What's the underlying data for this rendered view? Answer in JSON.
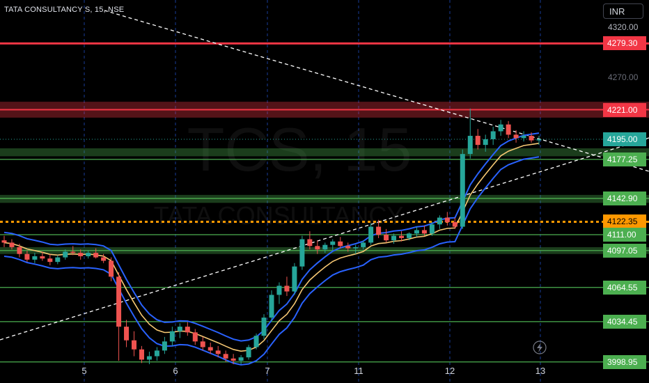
{
  "header": {
    "symbol_line": "TATA CONSULTANCY S, 15, NSE"
  },
  "currency_button": "INR",
  "watermark": {
    "ticker": "TCS, 15",
    "name": "TATA CONSULTANCY"
  },
  "axis": {
    "ticks": [
      "4320.00",
      "4270.00"
    ],
    "x_labels": [
      "5",
      "6",
      "7",
      "11",
      "12",
      "13"
    ]
  },
  "colors": {
    "background": "#000000",
    "resistance": "#f23645",
    "support": "#4caf50",
    "current": "#26a69a",
    "orange": "#ff9800",
    "band": "#2962ff",
    "ema": "#f7c873",
    "trendline": "#ffffff"
  },
  "price_labels": [
    {
      "text": "4279.30",
      "kind": "resistance"
    },
    {
      "text": "4221.00",
      "kind": "resistance"
    },
    {
      "text": "4195.00",
      "kind": "current"
    },
    {
      "text": "4177.25",
      "kind": "support"
    },
    {
      "text": "4142.90",
      "kind": "support"
    },
    {
      "text": "4122.35",
      "kind": "orange"
    },
    {
      "text": "4111.00",
      "kind": "support"
    },
    {
      "text": "4097.05",
      "kind": "support"
    },
    {
      "text": "4064.55",
      "kind": "support"
    },
    {
      "text": "4034.45",
      "kind": "support"
    },
    {
      "text": "3998.95",
      "kind": "support"
    }
  ],
  "chart_data": {
    "type": "candlestick",
    "symbol": "TATA CONSULTANCY S",
    "interval": "15",
    "exchange": "NSE",
    "ylim": [
      3997,
      4325
    ],
    "x_day_labels": [
      "5",
      "6",
      "7",
      "11",
      "12",
      "13"
    ],
    "horizontal_levels": [
      {
        "price": 4279.3,
        "kind": "resistance"
      },
      {
        "price": 4221.0,
        "kind": "resistance"
      },
      {
        "price": 4195.0,
        "kind": "current"
      },
      {
        "price": 4177.25,
        "kind": "support"
      },
      {
        "price": 4142.9,
        "kind": "support"
      },
      {
        "price": 4122.35,
        "kind": "orange"
      },
      {
        "price": 4111.0,
        "kind": "support"
      },
      {
        "price": 4097.05,
        "kind": "support"
      },
      {
        "price": 4064.55,
        "kind": "support"
      },
      {
        "price": 4034.45,
        "kind": "support"
      },
      {
        "price": 3998.95,
        "kind": "support"
      }
    ],
    "zones": [
      {
        "from": 4214,
        "to": 4228,
        "kind": "resistance"
      },
      {
        "from": 4180,
        "to": 4187,
        "kind": "support"
      },
      {
        "from": 4139,
        "to": 4146,
        "kind": "support"
      },
      {
        "from": 4094,
        "to": 4100,
        "kind": "support"
      }
    ],
    "candles": [
      {
        "o": 4106,
        "h": 4110,
        "l": 4100,
        "c": 4104
      },
      {
        "o": 4104,
        "h": 4107,
        "l": 4098,
        "c": 4100
      },
      {
        "o": 4100,
        "h": 4103,
        "l": 4091,
        "c": 4094
      },
      {
        "o": 4094,
        "h": 4097,
        "l": 4087,
        "c": 4089
      },
      {
        "o": 4089,
        "h": 4095,
        "l": 4086,
        "c": 4092
      },
      {
        "o": 4092,
        "h": 4096,
        "l": 4088,
        "c": 4090
      },
      {
        "o": 4090,
        "h": 4094,
        "l": 4084,
        "c": 4087
      },
      {
        "o": 4087,
        "h": 4093,
        "l": 4085,
        "c": 4091
      },
      {
        "o": 4091,
        "h": 4098,
        "l": 4089,
        "c": 4096
      },
      {
        "o": 4096,
        "h": 4101,
        "l": 4093,
        "c": 4095
      },
      {
        "o": 4095,
        "h": 4098,
        "l": 4089,
        "c": 4092
      },
      {
        "o": 4092,
        "h": 4097,
        "l": 4090,
        "c": 4095
      },
      {
        "o": 4095,
        "h": 4099,
        "l": 4090,
        "c": 4091
      },
      {
        "o": 4091,
        "h": 4094,
        "l": 4086,
        "c": 4088
      },
      {
        "o": 4088,
        "h": 4091,
        "l": 4070,
        "c": 4074
      },
      {
        "o": 4074,
        "h": 4078,
        "l": 4000,
        "c": 4030
      },
      {
        "o": 4030,
        "h": 4036,
        "l": 4012,
        "c": 4018
      },
      {
        "o": 4018,
        "h": 4026,
        "l": 4004,
        "c": 4010
      },
      {
        "o": 4010,
        "h": 4013,
        "l": 3998,
        "c": 4001
      },
      {
        "o": 4001,
        "h": 4008,
        "l": 3997,
        "c": 4004
      },
      {
        "o": 4004,
        "h": 4012,
        "l": 4000,
        "c": 4009
      },
      {
        "o": 4009,
        "h": 4021,
        "l": 4006,
        "c": 4017
      },
      {
        "o": 4017,
        "h": 4030,
        "l": 4013,
        "c": 4026
      },
      {
        "o": 4026,
        "h": 4033,
        "l": 4020,
        "c": 4030
      },
      {
        "o": 4030,
        "h": 4034,
        "l": 4022,
        "c": 4025
      },
      {
        "o": 4025,
        "h": 4028,
        "l": 4014,
        "c": 4017
      },
      {
        "o": 4017,
        "h": 4021,
        "l": 4009,
        "c": 4012
      },
      {
        "o": 4012,
        "h": 4016,
        "l": 4006,
        "c": 4009
      },
      {
        "o": 4009,
        "h": 4013,
        "l": 4003,
        "c": 4006
      },
      {
        "o": 4006,
        "h": 4009,
        "l": 3999,
        "c": 4002
      },
      {
        "o": 4002,
        "h": 4006,
        "l": 3997,
        "c": 4000
      },
      {
        "o": 4000,
        "h": 4005,
        "l": 3997,
        "c": 4003
      },
      {
        "o": 4003,
        "h": 4014,
        "l": 4001,
        "c": 4012
      },
      {
        "o": 4012,
        "h": 4024,
        "l": 4010,
        "c": 4022
      },
      {
        "o": 4022,
        "h": 4041,
        "l": 4019,
        "c": 4038
      },
      {
        "o": 4038,
        "h": 4062,
        "l": 4034,
        "c": 4058
      },
      {
        "o": 4058,
        "h": 4069,
        "l": 4050,
        "c": 4066
      },
      {
        "o": 4066,
        "h": 4074,
        "l": 4057,
        "c": 4061
      },
      {
        "o": 4061,
        "h": 4086,
        "l": 4058,
        "c": 4083
      },
      {
        "o": 4083,
        "h": 4110,
        "l": 4080,
        "c": 4107
      },
      {
        "o": 4107,
        "h": 4114,
        "l": 4098,
        "c": 4101
      },
      {
        "o": 4101,
        "h": 4106,
        "l": 4094,
        "c": 4098
      },
      {
        "o": 4098,
        "h": 4104,
        "l": 4095,
        "c": 4102
      },
      {
        "o": 4102,
        "h": 4107,
        "l": 4097,
        "c": 4105
      },
      {
        "o": 4105,
        "h": 4109,
        "l": 4099,
        "c": 4101
      },
      {
        "o": 4101,
        "h": 4104,
        "l": 4096,
        "c": 4099
      },
      {
        "o": 4099,
        "h": 4102,
        "l": 4094,
        "c": 4100
      },
      {
        "o": 4100,
        "h": 4106,
        "l": 4098,
        "c": 4104
      },
      {
        "o": 4104,
        "h": 4121,
        "l": 4102,
        "c": 4118
      },
      {
        "o": 4118,
        "h": 4124,
        "l": 4108,
        "c": 4111
      },
      {
        "o": 4111,
        "h": 4116,
        "l": 4104,
        "c": 4106
      },
      {
        "o": 4106,
        "h": 4112,
        "l": 4103,
        "c": 4110
      },
      {
        "o": 4110,
        "h": 4114,
        "l": 4105,
        "c": 4108
      },
      {
        "o": 4108,
        "h": 4113,
        "l": 4106,
        "c": 4112
      },
      {
        "o": 4112,
        "h": 4118,
        "l": 4109,
        "c": 4115
      },
      {
        "o": 4115,
        "h": 4119,
        "l": 4110,
        "c": 4112
      },
      {
        "o": 4112,
        "h": 4122,
        "l": 4110,
        "c": 4120
      },
      {
        "o": 4120,
        "h": 4128,
        "l": 4116,
        "c": 4126
      },
      {
        "o": 4126,
        "h": 4131,
        "l": 4119,
        "c": 4122
      },
      {
        "o": 4122,
        "h": 4126,
        "l": 4116,
        "c": 4118
      },
      {
        "o": 4118,
        "h": 4186,
        "l": 4116,
        "c": 4182
      },
      {
        "o": 4182,
        "h": 4222,
        "l": 4178,
        "c": 4198
      },
      {
        "o": 4198,
        "h": 4204,
        "l": 4186,
        "c": 4190
      },
      {
        "o": 4190,
        "h": 4199,
        "l": 4184,
        "c": 4195
      },
      {
        "o": 4195,
        "h": 4206,
        "l": 4190,
        "c": 4202
      },
      {
        "o": 4202,
        "h": 4212,
        "l": 4198,
        "c": 4208
      },
      {
        "o": 4208,
        "h": 4211,
        "l": 4196,
        "c": 4199
      },
      {
        "o": 4199,
        "h": 4203,
        "l": 4192,
        "c": 4196
      },
      {
        "o": 4196,
        "h": 4202,
        "l": 4193,
        "c": 4198
      },
      {
        "o": 4198,
        "h": 4201,
        "l": 4192,
        "c": 4194
      },
      {
        "o": 4194,
        "h": 4198,
        "l": 4190,
        "c": 4195
      }
    ]
  }
}
